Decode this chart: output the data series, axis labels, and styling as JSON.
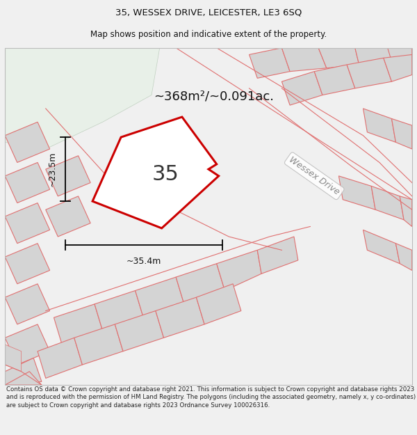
{
  "title_line1": "35, WESSEX DRIVE, LEICESTER, LE3 6SQ",
  "title_line2": "Map shows position and indicative extent of the property.",
  "area_label": "~368m²/~0.091ac.",
  "property_number": "35",
  "width_label": "~35.4m",
  "height_label": "~23.5m",
  "street_label": "Wessex Drive",
  "footer_text": "Contains OS data © Crown copyright and database right 2021. This information is subject to Crown copyright and database rights 2023 and is reproduced with the permission of HM Land Registry. The polygons (including the associated geometry, namely x, y co-ordinates) are subject to Crown copyright and database rights 2023 Ordnance Survey 100026316.",
  "bg_color": "#f0f0f0",
  "map_bg_color": "#ffffff",
  "green_area_color": "#e8f0e8",
  "property_fill": "#ffffff",
  "property_edge": "#cc0000",
  "building_fill": "#d4d4d4",
  "building_outline": "#e07070",
  "road_line_color": "#e07070",
  "title_fontsize": 9.5,
  "subtitle_fontsize": 8.5,
  "footer_fontsize": 6.2,
  "area_fontsize": 13,
  "number_fontsize": 22,
  "dim_fontsize": 9
}
